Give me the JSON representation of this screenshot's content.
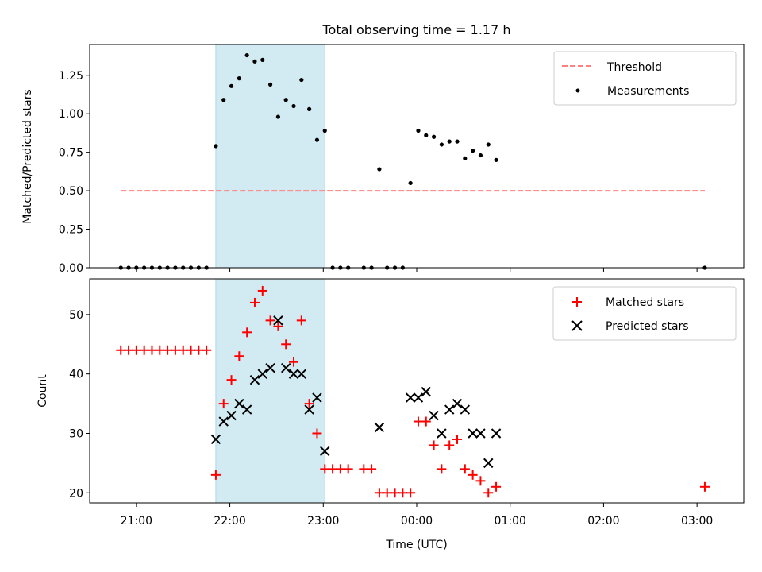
{
  "title": "Total observing time = 1.17 h",
  "chart_data": [
    {
      "type": "scatter",
      "panel": "top",
      "xlabel": "",
      "ylabel": "Matched/Predicted stars",
      "xlim": [
        "20:30",
        "03:30"
      ],
      "ylim": [
        0,
        1.45
      ],
      "yticks": [
        "0.00",
        "0.25",
        "0.50",
        "0.75",
        "1.00",
        "1.25"
      ],
      "shaded_interval": [
        "21:51",
        "23:01"
      ],
      "legend": {
        "position": "upper-right",
        "entries": [
          "Threshold",
          "Measurements"
        ]
      },
      "threshold": {
        "name": "Threshold",
        "y": 0.5,
        "x_range": [
          "20:50",
          "03:05"
        ],
        "color": "#ff8080",
        "style": "dashed"
      },
      "series": [
        {
          "name": "Measurements",
          "color": "#000000",
          "marker": "dot",
          "points": [
            [
              "20:50",
              0
            ],
            [
              "20:55",
              0
            ],
            [
              "21:00",
              0
            ],
            [
              "21:05",
              0
            ],
            [
              "21:10",
              0
            ],
            [
              "21:15",
              0
            ],
            [
              "21:20",
              0
            ],
            [
              "21:25",
              0
            ],
            [
              "21:30",
              0
            ],
            [
              "21:35",
              0
            ],
            [
              "21:40",
              0
            ],
            [
              "21:45",
              0
            ],
            [
              "21:51",
              0.79
            ],
            [
              "21:56",
              1.09
            ],
            [
              "22:01",
              1.18
            ],
            [
              "22:06",
              1.23
            ],
            [
              "22:11",
              1.38
            ],
            [
              "22:16",
              1.34
            ],
            [
              "22:21",
              1.35
            ],
            [
              "22:26",
              1.19
            ],
            [
              "22:31",
              0.98
            ],
            [
              "22:36",
              1.09
            ],
            [
              "22:41",
              1.05
            ],
            [
              "22:46",
              1.22
            ],
            [
              "22:51",
              1.03
            ],
            [
              "22:56",
              0.83
            ],
            [
              "23:01",
              0.89
            ],
            [
              "23:06",
              0
            ],
            [
              "23:11",
              0
            ],
            [
              "23:16",
              0
            ],
            [
              "23:26",
              0
            ],
            [
              "23:31",
              0
            ],
            [
              "23:36",
              0.64
            ],
            [
              "23:41",
              0
            ],
            [
              "23:46",
              0
            ],
            [
              "23:51",
              0
            ],
            [
              "23:56",
              0.55
            ],
            [
              "00:01",
              0.89
            ],
            [
              "00:06",
              0.86
            ],
            [
              "00:11",
              0.85
            ],
            [
              "00:16",
              0.8
            ],
            [
              "00:21",
              0.82
            ],
            [
              "00:26",
              0.82
            ],
            [
              "00:31",
              0.71
            ],
            [
              "00:36",
              0.76
            ],
            [
              "00:41",
              0.73
            ],
            [
              "00:46",
              0.8
            ],
            [
              "00:51",
              0.7
            ],
            [
              "03:05",
              0
            ]
          ]
        }
      ]
    },
    {
      "type": "scatter",
      "panel": "bottom",
      "xlabel": "Time (UTC)",
      "ylabel": "Count",
      "xlim": [
        "20:30",
        "03:30"
      ],
      "ylim": [
        18.3,
        56
      ],
      "yticks": [
        "20",
        "30",
        "40",
        "50"
      ],
      "xticks": [
        "21:00",
        "22:00",
        "23:00",
        "00:00",
        "01:00",
        "02:00",
        "03:00"
      ],
      "shaded_interval": [
        "21:51",
        "23:01"
      ],
      "legend": {
        "position": "upper-right",
        "entries": [
          "Matched stars",
          "Predicted stars"
        ]
      },
      "series": [
        {
          "name": "Matched stars",
          "color": "#ff0000",
          "marker": "plus",
          "points": [
            [
              "20:50",
              44
            ],
            [
              "20:55",
              44
            ],
            [
              "21:00",
              44
            ],
            [
              "21:05",
              44
            ],
            [
              "21:10",
              44
            ],
            [
              "21:15",
              44
            ],
            [
              "21:20",
              44
            ],
            [
              "21:25",
              44
            ],
            [
              "21:30",
              44
            ],
            [
              "21:35",
              44
            ],
            [
              "21:40",
              44
            ],
            [
              "21:45",
              44
            ],
            [
              "21:51",
              23
            ],
            [
              "21:56",
              35
            ],
            [
              "22:01",
              39
            ],
            [
              "22:06",
              43
            ],
            [
              "22:11",
              47
            ],
            [
              "22:16",
              52
            ],
            [
              "22:21",
              54
            ],
            [
              "22:26",
              49
            ],
            [
              "22:31",
              48
            ],
            [
              "22:36",
              45
            ],
            [
              "22:41",
              42
            ],
            [
              "22:46",
              49
            ],
            [
              "22:51",
              35
            ],
            [
              "22:56",
              30
            ],
            [
              "23:01",
              24
            ],
            [
              "23:06",
              24
            ],
            [
              "23:11",
              24
            ],
            [
              "23:16",
              24
            ],
            [
              "23:26",
              24
            ],
            [
              "23:31",
              24
            ],
            [
              "23:36",
              20
            ],
            [
              "23:41",
              20
            ],
            [
              "23:46",
              20
            ],
            [
              "23:51",
              20
            ],
            [
              "23:56",
              20
            ],
            [
              "00:01",
              32
            ],
            [
              "00:06",
              32
            ],
            [
              "00:11",
              28
            ],
            [
              "00:16",
              24
            ],
            [
              "00:21",
              28
            ],
            [
              "00:26",
              29
            ],
            [
              "00:31",
              24
            ],
            [
              "00:36",
              23
            ],
            [
              "00:41",
              22
            ],
            [
              "00:46",
              20
            ],
            [
              "00:51",
              21
            ],
            [
              "03:05",
              21
            ]
          ]
        },
        {
          "name": "Predicted stars",
          "color": "#000000",
          "marker": "x",
          "points": [
            [
              "21:51",
              29
            ],
            [
              "21:56",
              32
            ],
            [
              "22:01",
              33
            ],
            [
              "22:06",
              35
            ],
            [
              "22:11",
              34
            ],
            [
              "22:16",
              39
            ],
            [
              "22:21",
              40
            ],
            [
              "22:26",
              41
            ],
            [
              "22:31",
              49
            ],
            [
              "22:36",
              41
            ],
            [
              "22:41",
              40
            ],
            [
              "22:46",
              40
            ],
            [
              "22:51",
              34
            ],
            [
              "22:56",
              36
            ],
            [
              "23:01",
              27
            ],
            [
              "23:36",
              31
            ],
            [
              "23:56",
              36
            ],
            [
              "00:01",
              36
            ],
            [
              "00:06",
              37
            ],
            [
              "00:11",
              33
            ],
            [
              "00:16",
              30
            ],
            [
              "00:21",
              34
            ],
            [
              "00:26",
              35
            ],
            [
              "00:31",
              34
            ],
            [
              "00:36",
              30
            ],
            [
              "00:41",
              30
            ],
            [
              "00:46",
              25
            ],
            [
              "00:51",
              30
            ]
          ]
        }
      ]
    }
  ]
}
